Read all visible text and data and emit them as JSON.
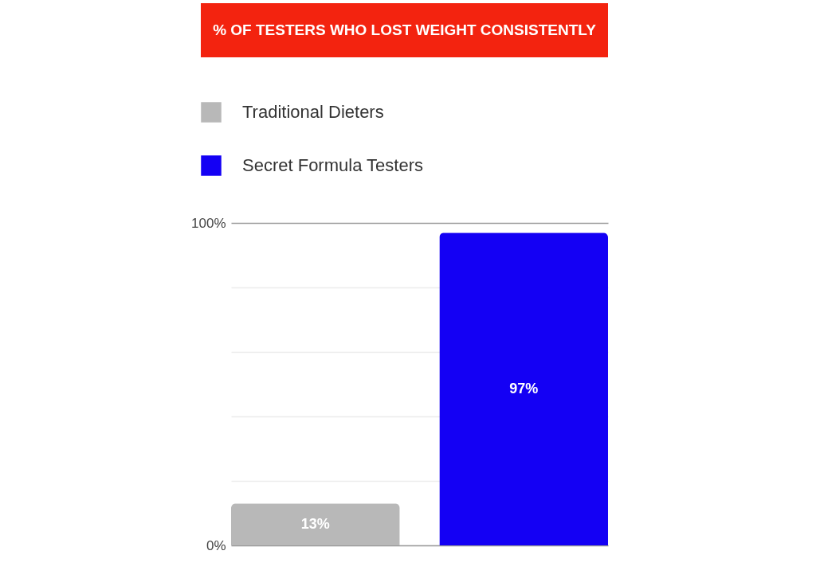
{
  "chart_data": {
    "type": "bar",
    "title": "% OF TESTERS WHO LOST WEIGHT CONSISTENTLY",
    "categories": [
      null,
      null
    ],
    "series": [
      {
        "name": "Traditional Dieters",
        "color": "#b8b8b8",
        "values": [
          13,
          null
        ],
        "value_labels": [
          "13%",
          null
        ]
      },
      {
        "name": "Secret Formula Testers",
        "color": "#1400f4",
        "values": [
          null,
          97
        ],
        "value_labels": [
          null,
          "97%"
        ]
      }
    ],
    "ylim": [
      0,
      100
    ],
    "yticks": [
      {
        "value": 0,
        "label": "0%"
      },
      {
        "value": 20,
        "label": null
      },
      {
        "value": 40,
        "label": null
      },
      {
        "value": 60,
        "label": null
      },
      {
        "value": 80,
        "label": null
      },
      {
        "value": 100,
        "label": "100%"
      }
    ],
    "grid": "y",
    "legend": "top left",
    "tick_labels": "y"
  }
}
